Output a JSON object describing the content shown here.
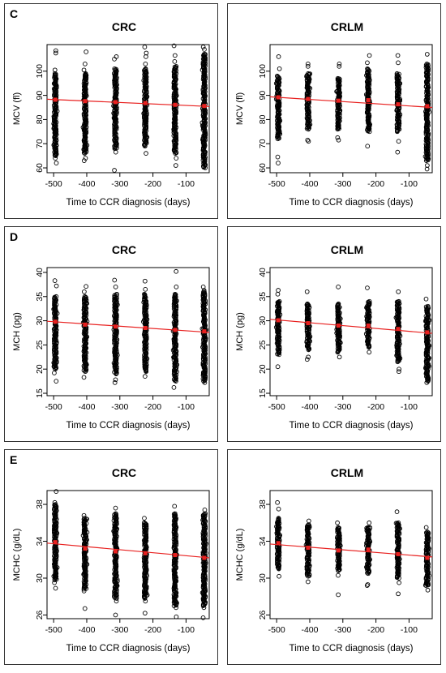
{
  "figure": {
    "row_letters": [
      "C",
      "D",
      "E"
    ]
  },
  "chart_data": [
    {
      "type": "scatter",
      "panel_letter": "C",
      "title": "CRC",
      "xlabel": "Time to CCR diagnosis (days)",
      "ylabel": "MCV (fl)",
      "xlim": [
        -520,
        -30
      ],
      "ylim": [
        58,
        111
      ],
      "xticks": [
        -500,
        -400,
        -300,
        -200,
        -100
      ],
      "yticks": [
        60,
        70,
        80,
        90,
        100
      ],
      "x_positions": [
        -495,
        -405,
        -313,
        -223,
        -133,
        -45
      ],
      "spread": [
        {
          "x": -495,
          "outliers": [
            108.5,
            107.5,
            100.5,
            66.5,
            64,
            62
          ],
          "dense": [
            65,
            99
          ]
        },
        {
          "x": -405,
          "outliers": [
            108,
            103,
            100.5,
            64,
            63
          ],
          "dense": [
            66,
            99
          ]
        },
        {
          "x": -313,
          "outliers": [
            106,
            105,
            66.5,
            59
          ],
          "dense": [
            68,
            101
          ]
        },
        {
          "x": -223,
          "outliers": [
            110,
            107.5,
            106,
            103,
            66
          ],
          "dense": [
            69,
            101
          ]
        },
        {
          "x": -133,
          "outliers": [
            110.5,
            106.5,
            104,
            64,
            61
          ],
          "dense": [
            66,
            102
          ]
        },
        {
          "x": -45,
          "outliers": [
            110,
            109,
            107
          ],
          "dense": [
            60,
            107
          ]
        }
      ],
      "means": [
        88.2,
        87.6,
        87.2,
        86.8,
        86.1,
        85.6
      ],
      "trend": {
        "x": [
          -520,
          -30
        ],
        "y": [
          88.4,
          85.4
        ],
        "color": "#e8201f"
      }
    },
    {
      "type": "scatter",
      "panel_letter": "",
      "title": "CRLM",
      "xlabel": "Time to CCR diagnosis (days)",
      "ylabel": "MCV (fl)",
      "xlim": [
        -520,
        -30
      ],
      "ylim": [
        58,
        111
      ],
      "xticks": [
        -500,
        -400,
        -300,
        -200,
        -100
      ],
      "yticks": [
        60,
        70,
        80,
        90,
        100
      ],
      "x_positions": [
        -495,
        -405,
        -313,
        -223,
        -133,
        -45
      ],
      "spread": [
        {
          "x": -495,
          "outliers": [
            106,
            101,
            64.5,
            62
          ],
          "dense": [
            72,
            98
          ]
        },
        {
          "x": -405,
          "outliers": [
            103,
            102,
            71.5,
            71
          ],
          "dense": [
            76,
            99
          ]
        },
        {
          "x": -313,
          "outliers": [
            103,
            102,
            72.5,
            71.5
          ],
          "dense": [
            76,
            97
          ]
        },
        {
          "x": -223,
          "outliers": [
            106.5,
            103.5,
            69
          ],
          "dense": [
            75,
            101
          ]
        },
        {
          "x": -133,
          "outliers": [
            106.5,
            103.5,
            71,
            66.5
          ],
          "dense": [
            75,
            99
          ]
        },
        {
          "x": -45,
          "outliers": [
            107,
            61,
            59.5
          ],
          "dense": [
            63,
            103
          ]
        }
      ],
      "means": [
        89.2,
        88.5,
        87.8,
        88.0,
        86.3,
        85.5
      ],
      "trend": {
        "x": [
          -520,
          -30
        ],
        "y": [
          89.4,
          85.0
        ],
        "color": "#e8201f"
      }
    },
    {
      "type": "scatter",
      "panel_letter": "D",
      "title": "CRC",
      "xlabel": "Time to CCR diagnosis (days)",
      "ylabel": "MCH (pg)",
      "xlim": [
        -520,
        -30
      ],
      "ylim": [
        14.5,
        41
      ],
      "xticks": [
        -500,
        -400,
        -300,
        -200,
        -100
      ],
      "yticks": [
        15,
        20,
        25,
        30,
        35,
        40
      ],
      "x_positions": [
        -495,
        -405,
        -313,
        -223,
        -133,
        -45
      ],
      "spread": [
        {
          "x": -495,
          "outliers": [
            38.3,
            37.2,
            19.2,
            17.5
          ],
          "dense": [
            20,
            35
          ]
        },
        {
          "x": -405,
          "outliers": [
            37.1,
            36,
            18.3
          ],
          "dense": [
            19.5,
            35
          ]
        },
        {
          "x": -313,
          "outliers": [
            38.4,
            37,
            17.8,
            17.2
          ],
          "dense": [
            19,
            35.5
          ]
        },
        {
          "x": -223,
          "outliers": [
            38.2,
            36.5,
            18.5
          ],
          "dense": [
            19.5,
            35.5
          ]
        },
        {
          "x": -133,
          "outliers": [
            40.2,
            37,
            16.2
          ],
          "dense": [
            17.5,
            35.5
          ]
        },
        {
          "x": -45,
          "outliers": [
            37,
            36.3,
            17.2
          ],
          "dense": [
            17.5,
            36
          ]
        }
      ],
      "means": [
        29.8,
        29.2,
        28.8,
        28.5,
        28.1,
        27.8
      ],
      "trend": {
        "x": [
          -520,
          -30
        ],
        "y": [
          29.9,
          27.6
        ],
        "color": "#e8201f"
      }
    },
    {
      "type": "scatter",
      "panel_letter": "",
      "title": "CRLM",
      "xlabel": "Time to CCR diagnosis (days)",
      "ylabel": "MCH (pg)",
      "xlim": [
        -520,
        -30
      ],
      "ylim": [
        14.5,
        41
      ],
      "xticks": [
        -500,
        -400,
        -300,
        -200,
        -100
      ],
      "yticks": [
        15,
        20,
        25,
        30,
        35,
        40
      ],
      "x_positions": [
        -495,
        -405,
        -313,
        -223,
        -133,
        -45
      ],
      "spread": [
        {
          "x": -495,
          "outliers": [
            36.3,
            35.5,
            20.5
          ],
          "dense": [
            23,
            34
          ]
        },
        {
          "x": -405,
          "outliers": [
            36,
            22,
            22.5
          ],
          "dense": [
            24,
            33.5
          ]
        },
        {
          "x": -313,
          "outliers": [
            37,
            22.5
          ],
          "dense": [
            23.5,
            33.5
          ]
        },
        {
          "x": -223,
          "outliers": [
            36.8,
            23.5
          ],
          "dense": [
            24.5,
            34
          ]
        },
        {
          "x": -133,
          "outliers": [
            36,
            20,
            19.5
          ],
          "dense": [
            21.5,
            34
          ]
        },
        {
          "x": -45,
          "outliers": [
            34.5,
            17.2
          ],
          "dense": [
            17.5,
            33
          ]
        }
      ],
      "means": [
        30.1,
        29.5,
        29.0,
        29.0,
        28.3,
        27.6
      ],
      "trend": {
        "x": [
          -520,
          -30
        ],
        "y": [
          30.3,
          27.4
        ],
        "color": "#e8201f"
      }
    },
    {
      "type": "scatter",
      "panel_letter": "E",
      "title": "CRC",
      "xlabel": "Time to CCR diagnosis (days)",
      "ylabel": "MCHC (g/dL)",
      "xlim": [
        -520,
        -30
      ],
      "ylim": [
        25.6,
        39.5
      ],
      "xticks": [
        -500,
        -400,
        -300,
        -200,
        -100
      ],
      "yticks": [
        26,
        30,
        34,
        38
      ],
      "x_positions": [
        -495,
        -405,
        -313,
        -223,
        -133,
        -45
      ],
      "spread": [
        {
          "x": -495,
          "outliers": [
            39.4,
            38.2,
            29.5,
            28.9
          ],
          "dense": [
            29.8,
            38
          ]
        },
        {
          "x": -405,
          "outliers": [
            36.8,
            26.7,
            28.6
          ],
          "dense": [
            28.8,
            36.5
          ]
        },
        {
          "x": -313,
          "outliers": [
            37.6,
            26,
            27.5
          ],
          "dense": [
            27.8,
            37
          ]
        },
        {
          "x": -223,
          "outliers": [
            36.5,
            26.2,
            27.5
          ],
          "dense": [
            27.8,
            36
          ]
        },
        {
          "x": -133,
          "outliers": [
            37.8,
            25.8,
            26.8
          ],
          "dense": [
            27,
            37
          ]
        },
        {
          "x": -45,
          "outliers": [
            37.4,
            26.8,
            25.7
          ],
          "dense": [
            27,
            37
          ]
        }
      ],
      "means": [
        33.9,
        33.2,
        32.9,
        32.7,
        32.5,
        32.2
      ],
      "trend": {
        "x": [
          -520,
          -30
        ],
        "y": [
          33.8,
          32.2
        ],
        "color": "#e8201f"
      }
    },
    {
      "type": "scatter",
      "panel_letter": "",
      "title": "CRLM",
      "xlabel": "Time to CCR diagnosis (days)",
      "ylabel": "MCHC (g/dL)",
      "xlim": [
        -520,
        -30
      ],
      "ylim": [
        25.6,
        39.5
      ],
      "xticks": [
        -500,
        -400,
        -300,
        -200,
        -100
      ],
      "yticks": [
        26,
        30,
        34,
        38
      ],
      "x_positions": [
        -495,
        -405,
        -313,
        -223,
        -133,
        -45
      ],
      "spread": [
        {
          "x": -495,
          "outliers": [
            38.2,
            37.5,
            30.2
          ],
          "dense": [
            31,
            36.5
          ]
        },
        {
          "x": -405,
          "outliers": [
            36.2,
            29.6
          ],
          "dense": [
            30.2,
            35.8
          ]
        },
        {
          "x": -313,
          "outliers": [
            36,
            28.2,
            30.3
          ],
          "dense": [
            30.8,
            35.5
          ]
        },
        {
          "x": -223,
          "outliers": [
            36,
            29.3,
            29.2
          ],
          "dense": [
            30.5,
            35.5
          ]
        },
        {
          "x": -133,
          "outliers": [
            37.2,
            28.3,
            29.5
          ],
          "dense": [
            30,
            36
          ]
        },
        {
          "x": -45,
          "outliers": [
            35.5,
            28.7
          ],
          "dense": [
            29.2,
            35
          ]
        }
      ],
      "means": [
        33.8,
        33.3,
        33.0,
        33.1,
        32.6,
        32.2
      ],
      "trend": {
        "x": [
          -520,
          -30
        ],
        "y": [
          33.7,
          32.3
        ],
        "color": "#e8201f"
      }
    }
  ],
  "styles": {
    "point_color": "#000000",
    "mean_color": "#e8201f",
    "trend_color": "#e8201f"
  }
}
